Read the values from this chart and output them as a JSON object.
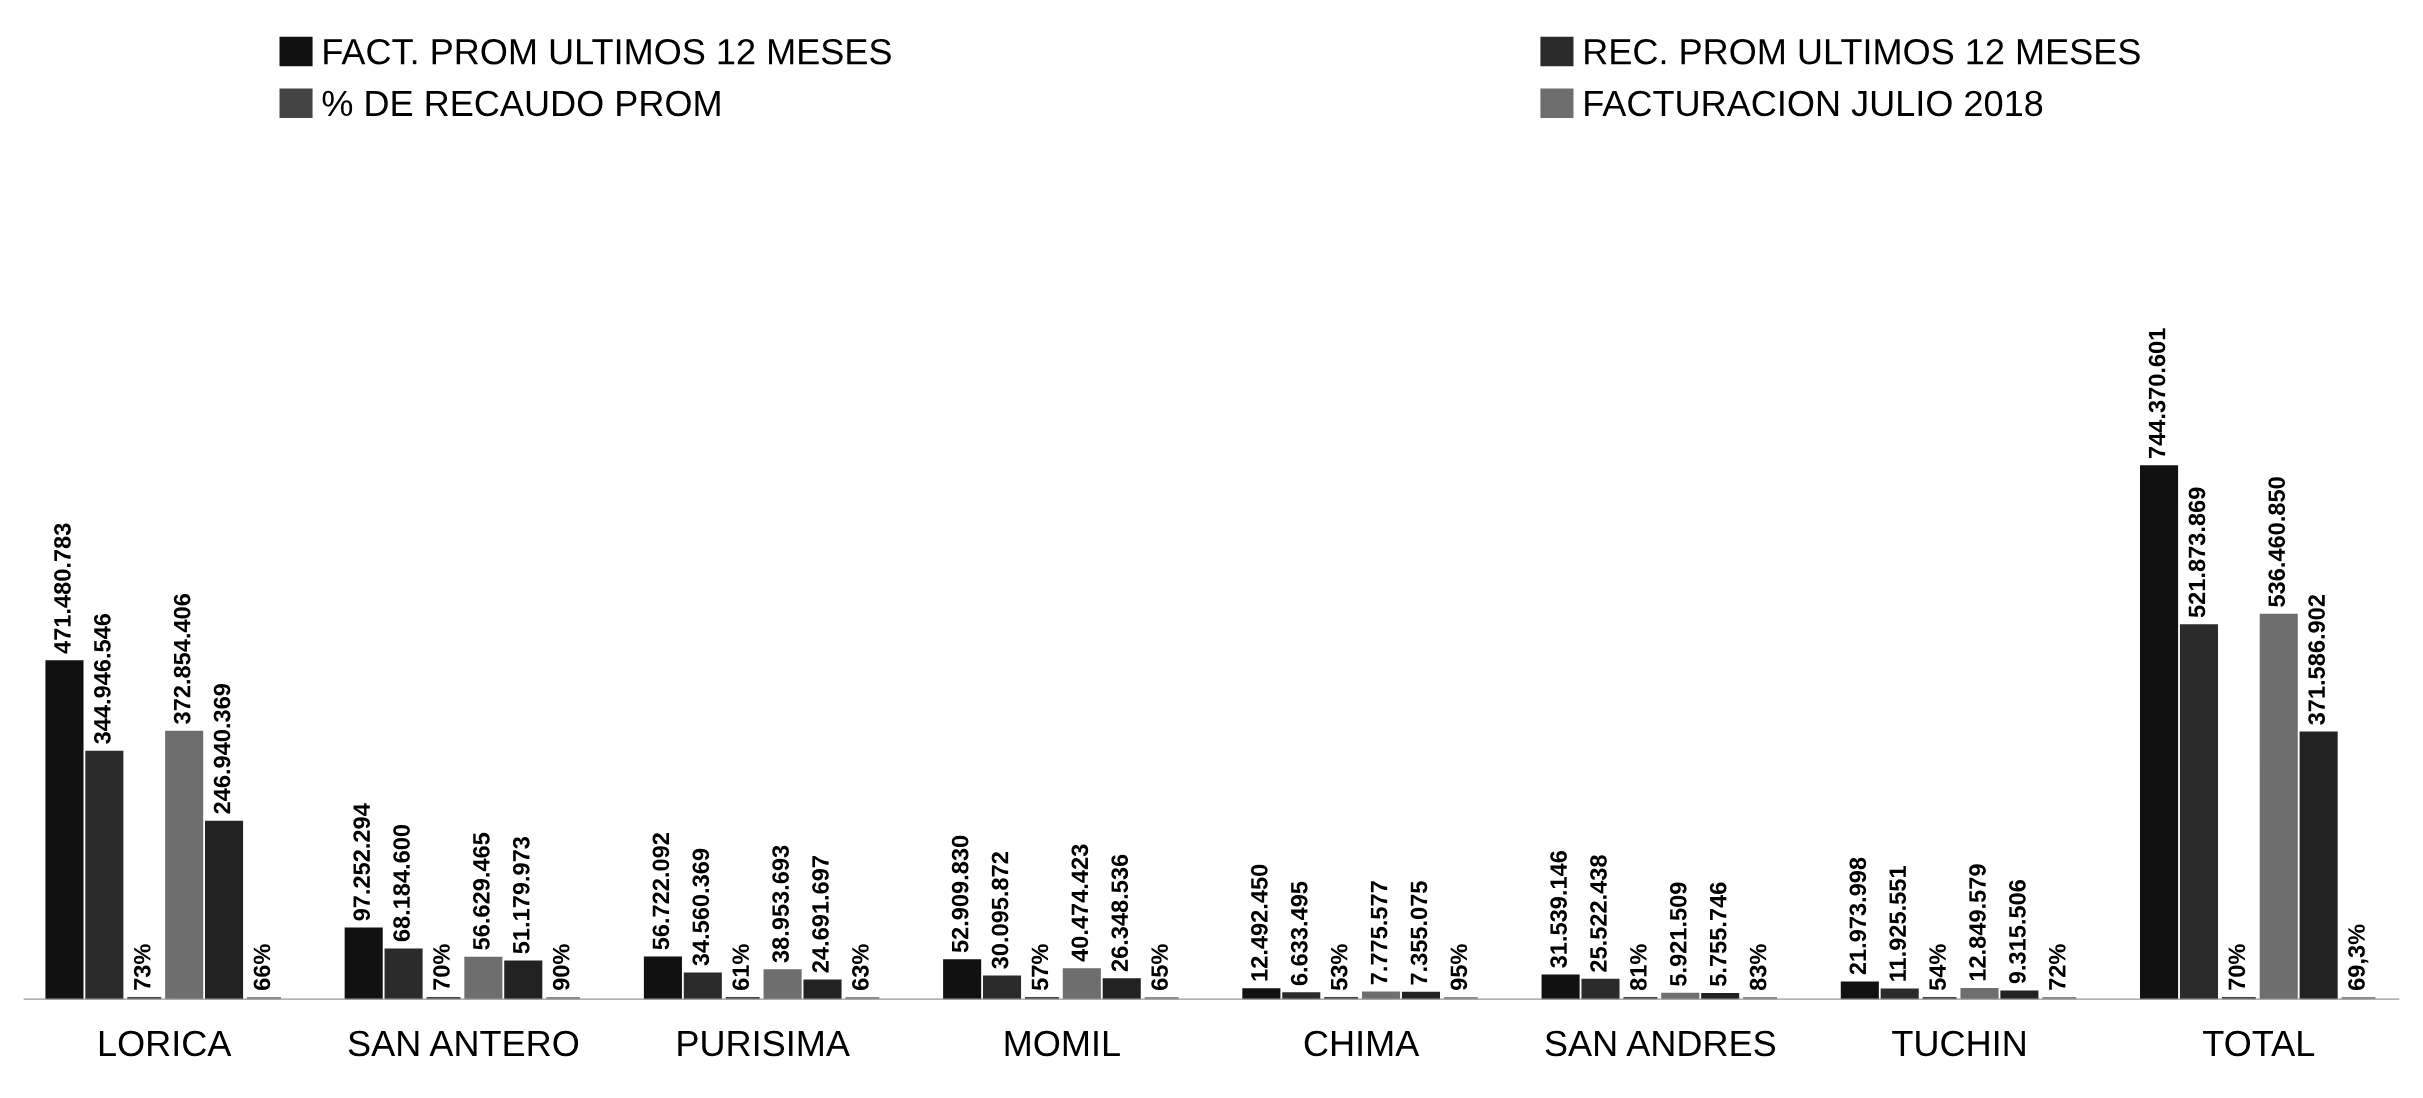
{
  "chart_data": {
    "type": "bar",
    "categories": [
      "LORICA",
      "SAN ANTERO",
      "PURISIMA",
      "MOMIL",
      "CHIMA",
      "SAN ANDRES",
      "TUCHIN",
      "TOTAL"
    ],
    "series": [
      {
        "name": "FACT. PROM ULTIMOS 12 MESES",
        "color": "#111111",
        "values": [
          471480783,
          97252294,
          56722092,
          52909830,
          12492450,
          31539146,
          21973998,
          744370601
        ],
        "value_labels": [
          "471.480.783",
          "97.252.294",
          "56.722.092",
          "52.909.830",
          "12.492.450",
          "31.539.146",
          "21.973.998",
          "744.370.601"
        ]
      },
      {
        "name": "REC. PROM ULTIMOS 12 MESES",
        "color": "#2b2b2b",
        "values": [
          344946546,
          68184600,
          34560369,
          30095872,
          6633495,
          25522438,
          11925551,
          521873869
        ],
        "value_labels": [
          "344.946.546",
          "68.184.600",
          "34.560.369",
          "30.095.872",
          "6.633.495",
          "25.522.438",
          "11.925.551",
          "521.873.869"
        ]
      },
      {
        "name": "% DE RECAUDO PROM",
        "color": "#444444",
        "values": [
          0.73,
          0.7,
          0.61,
          0.57,
          0.53,
          0.81,
          0.54,
          0.7
        ],
        "value_labels": [
          "73%",
          "70%",
          "61%",
          "57%",
          "53%",
          "81%",
          "54%",
          "70%"
        ]
      },
      {
        "name": "FACTURACION JULIO 2018",
        "color": "#6e6e6e",
        "values": [
          372854406,
          56629465,
          38953693,
          40474423,
          7775577,
          5921509,
          12849579,
          536460850
        ],
        "value_labels": [
          "372.854.406",
          "56.629.465",
          "38.953.693",
          "40.474.423",
          "7.775.577",
          "5.921.509",
          "12.849.579",
          "536.460.850"
        ]
      },
      {
        "color": "#222222",
        "values": [
          246940369,
          51179973,
          24691697,
          26348536,
          7355075,
          5755746,
          9315506,
          371586902
        ],
        "value_labels": [
          "246.940.369",
          "51.179.973",
          "24.691.697",
          "26.348.536",
          "7.355.075",
          "5.755.746",
          "9.315.506",
          "371.586.902"
        ]
      },
      {
        "color": "#888888",
        "values": [
          0.66,
          0.9,
          0.63,
          0.65,
          0.95,
          0.83,
          0.72,
          0.693
        ],
        "value_labels": [
          "66%",
          "90%",
          "63%",
          "65%",
          "95%",
          "83%",
          "72%",
          "69,3%"
        ]
      }
    ],
    "legend": "top",
    "grid": false
  }
}
